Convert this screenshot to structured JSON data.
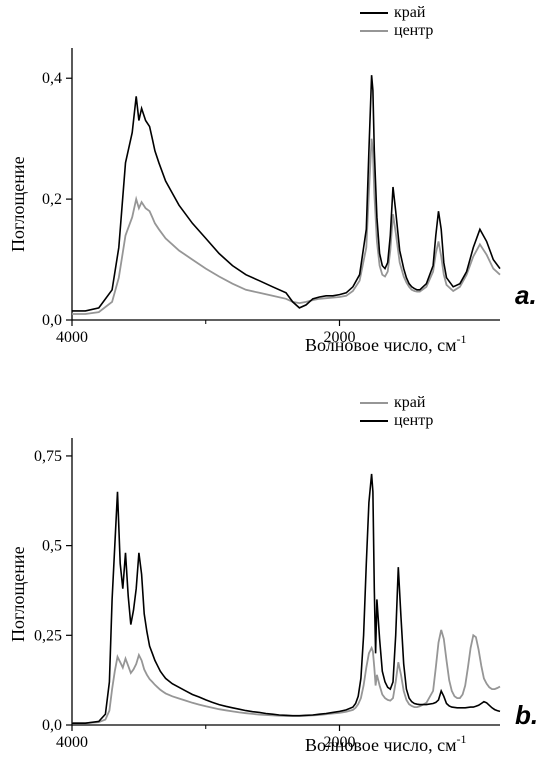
{
  "colors": {
    "bg": "#ffffff",
    "axis": "#000000",
    "series_black": "#000000",
    "series_gray": "#969696"
  },
  "fonts": {
    "axis_label_pt": 18,
    "tick_pt": 16,
    "legend_pt": 16,
    "panel_letter_pt": 26
  },
  "panel_a": {
    "type": "line",
    "letter": "a.",
    "ylabel": "Поглощение",
    "xlabel": "Волновое число, см",
    "xlabel_sup": "-1",
    "xlim": [
      4000,
      800
    ],
    "ylim": [
      0.0,
      0.45
    ],
    "xticks": [
      4000,
      2000
    ],
    "yticks": [
      0.0,
      0.2,
      0.4
    ],
    "ytick_labels": [
      "0,0",
      "0,2",
      "0,4"
    ],
    "legend": [
      {
        "label": "край",
        "color": "#000000"
      },
      {
        "label": "центр",
        "color": "#969696"
      }
    ],
    "series_black": {
      "x": [
        4000,
        3900,
        3800,
        3700,
        3650,
        3600,
        3550,
        3520,
        3500,
        3480,
        3450,
        3420,
        3400,
        3380,
        3350,
        3300,
        3250,
        3200,
        3100,
        3000,
        2900,
        2800,
        2700,
        2600,
        2500,
        2400,
        2350,
        2300,
        2250,
        2200,
        2150,
        2100,
        2050,
        2000,
        1950,
        1900,
        1850,
        1800,
        1780,
        1760,
        1750,
        1740,
        1720,
        1700,
        1680,
        1660,
        1640,
        1620,
        1600,
        1580,
        1550,
        1520,
        1500,
        1480,
        1460,
        1440,
        1420,
        1400,
        1350,
        1300,
        1280,
        1260,
        1240,
        1220,
        1200,
        1150,
        1100,
        1050,
        1000,
        950,
        900,
        850,
        800
      ],
      "y": [
        0.015,
        0.015,
        0.02,
        0.05,
        0.12,
        0.26,
        0.31,
        0.37,
        0.33,
        0.35,
        0.33,
        0.32,
        0.3,
        0.28,
        0.26,
        0.23,
        0.21,
        0.19,
        0.16,
        0.135,
        0.11,
        0.09,
        0.075,
        0.065,
        0.055,
        0.045,
        0.03,
        0.02,
        0.025,
        0.035,
        0.038,
        0.04,
        0.04,
        0.042,
        0.045,
        0.055,
        0.075,
        0.15,
        0.28,
        0.405,
        0.38,
        0.28,
        0.17,
        0.11,
        0.09,
        0.085,
        0.095,
        0.14,
        0.22,
        0.18,
        0.115,
        0.085,
        0.07,
        0.06,
        0.055,
        0.052,
        0.05,
        0.05,
        0.06,
        0.09,
        0.14,
        0.18,
        0.15,
        0.095,
        0.07,
        0.055,
        0.06,
        0.08,
        0.12,
        0.15,
        0.13,
        0.1,
        0.085
      ]
    },
    "series_gray": {
      "x": [
        4000,
        3900,
        3800,
        3700,
        3650,
        3600,
        3550,
        3520,
        3500,
        3480,
        3450,
        3420,
        3400,
        3380,
        3350,
        3300,
        3250,
        3200,
        3100,
        3000,
        2900,
        2800,
        2700,
        2600,
        2500,
        2400,
        2350,
        2300,
        2250,
        2200,
        2150,
        2100,
        2050,
        2000,
        1950,
        1900,
        1850,
        1800,
        1780,
        1760,
        1750,
        1740,
        1720,
        1700,
        1680,
        1660,
        1640,
        1620,
        1600,
        1580,
        1550,
        1520,
        1500,
        1480,
        1460,
        1440,
        1420,
        1400,
        1350,
        1300,
        1280,
        1260,
        1240,
        1220,
        1200,
        1150,
        1100,
        1050,
        1000,
        950,
        900,
        850,
        800
      ],
      "y": [
        0.01,
        0.01,
        0.013,
        0.03,
        0.07,
        0.14,
        0.17,
        0.2,
        0.185,
        0.195,
        0.185,
        0.18,
        0.17,
        0.16,
        0.15,
        0.135,
        0.125,
        0.115,
        0.1,
        0.085,
        0.072,
        0.06,
        0.05,
        0.045,
        0.04,
        0.035,
        0.03,
        0.028,
        0.03,
        0.033,
        0.035,
        0.036,
        0.037,
        0.038,
        0.04,
        0.048,
        0.065,
        0.12,
        0.21,
        0.3,
        0.28,
        0.21,
        0.13,
        0.09,
        0.075,
        0.072,
        0.08,
        0.115,
        0.175,
        0.145,
        0.095,
        0.072,
        0.062,
        0.055,
        0.05,
        0.048,
        0.047,
        0.047,
        0.055,
        0.08,
        0.11,
        0.13,
        0.105,
        0.075,
        0.058,
        0.048,
        0.055,
        0.075,
        0.105,
        0.125,
        0.108,
        0.085,
        0.075
      ]
    }
  },
  "panel_b": {
    "type": "line",
    "letter": "b.",
    "ylabel": "Поглощение",
    "xlabel": "Волновое число, см",
    "xlabel_sup": "-1",
    "xlim": [
      4000,
      800
    ],
    "ylim": [
      0.0,
      0.8
    ],
    "xticks": [
      4000,
      2000
    ],
    "yticks": [
      0.0,
      0.25,
      0.5,
      0.75
    ],
    "ytick_labels": [
      "0,0",
      "0,25",
      "0,5",
      "0,75"
    ],
    "legend": [
      {
        "label": "край",
        "color": "#969696"
      },
      {
        "label": "центр",
        "color": "#000000"
      }
    ],
    "series_black": {
      "x": [
        4000,
        3900,
        3800,
        3750,
        3720,
        3700,
        3680,
        3660,
        3640,
        3620,
        3600,
        3580,
        3560,
        3540,
        3520,
        3500,
        3480,
        3460,
        3440,
        3420,
        3400,
        3380,
        3360,
        3340,
        3320,
        3300,
        3250,
        3200,
        3150,
        3100,
        3050,
        3000,
        2950,
        2900,
        2850,
        2800,
        2750,
        2700,
        2650,
        2600,
        2550,
        2500,
        2450,
        2400,
        2350,
        2300,
        2250,
        2200,
        2150,
        2100,
        2050,
        2000,
        1950,
        1900,
        1880,
        1860,
        1840,
        1820,
        1800,
        1780,
        1760,
        1750,
        1740,
        1730,
        1720,
        1700,
        1680,
        1660,
        1640,
        1620,
        1600,
        1580,
        1560,
        1540,
        1520,
        1500,
        1480,
        1460,
        1440,
        1420,
        1400,
        1350,
        1300,
        1280,
        1260,
        1240,
        1220,
        1200,
        1180,
        1160,
        1140,
        1120,
        1100,
        1080,
        1060,
        1040,
        1020,
        1000,
        980,
        960,
        940,
        920,
        900,
        880,
        860,
        840,
        820,
        800
      ],
      "y": [
        0.005,
        0.005,
        0.01,
        0.03,
        0.12,
        0.35,
        0.5,
        0.65,
        0.45,
        0.38,
        0.48,
        0.36,
        0.28,
        0.32,
        0.38,
        0.48,
        0.42,
        0.31,
        0.26,
        0.22,
        0.2,
        0.18,
        0.165,
        0.15,
        0.14,
        0.13,
        0.115,
        0.105,
        0.095,
        0.085,
        0.078,
        0.07,
        0.063,
        0.057,
        0.052,
        0.048,
        0.044,
        0.04,
        0.037,
        0.035,
        0.032,
        0.03,
        0.028,
        0.027,
        0.026,
        0.026,
        0.027,
        0.028,
        0.03,
        0.032,
        0.035,
        0.038,
        0.042,
        0.05,
        0.06,
        0.08,
        0.13,
        0.25,
        0.45,
        0.62,
        0.7,
        0.65,
        0.38,
        0.2,
        0.35,
        0.24,
        0.15,
        0.12,
        0.105,
        0.1,
        0.12,
        0.25,
        0.44,
        0.3,
        0.17,
        0.1,
        0.075,
        0.065,
        0.06,
        0.058,
        0.057,
        0.057,
        0.06,
        0.063,
        0.07,
        0.095,
        0.08,
        0.06,
        0.053,
        0.05,
        0.049,
        0.048,
        0.048,
        0.048,
        0.048,
        0.049,
        0.05,
        0.05,
        0.052,
        0.055,
        0.06,
        0.065,
        0.062,
        0.055,
        0.048,
        0.043,
        0.04,
        0.038
      ]
    },
    "series_gray": {
      "x": [
        4000,
        3900,
        3800,
        3750,
        3720,
        3700,
        3680,
        3660,
        3640,
        3620,
        3600,
        3580,
        3560,
        3540,
        3520,
        3500,
        3480,
        3460,
        3440,
        3420,
        3400,
        3380,
        3360,
        3340,
        3320,
        3300,
        3250,
        3200,
        3150,
        3100,
        3050,
        3000,
        2950,
        2900,
        2850,
        2800,
        2750,
        2700,
        2650,
        2600,
        2550,
        2500,
        2450,
        2400,
        2350,
        2300,
        2250,
        2200,
        2150,
        2100,
        2050,
        2000,
        1950,
        1900,
        1880,
        1860,
        1840,
        1820,
        1800,
        1780,
        1760,
        1750,
        1740,
        1730,
        1720,
        1700,
        1680,
        1660,
        1640,
        1620,
        1600,
        1580,
        1560,
        1540,
        1520,
        1500,
        1480,
        1460,
        1440,
        1420,
        1400,
        1350,
        1300,
        1280,
        1260,
        1240,
        1220,
        1200,
        1180,
        1160,
        1140,
        1120,
        1100,
        1080,
        1060,
        1040,
        1020,
        1000,
        980,
        960,
        940,
        920,
        900,
        880,
        860,
        840,
        820,
        800
      ],
      "y": [
        0.005,
        0.005,
        0.008,
        0.015,
        0.04,
        0.1,
        0.15,
        0.19,
        0.175,
        0.16,
        0.185,
        0.165,
        0.145,
        0.155,
        0.17,
        0.195,
        0.18,
        0.155,
        0.14,
        0.128,
        0.12,
        0.112,
        0.105,
        0.098,
        0.093,
        0.088,
        0.08,
        0.074,
        0.068,
        0.062,
        0.057,
        0.052,
        0.048,
        0.044,
        0.041,
        0.038,
        0.035,
        0.033,
        0.031,
        0.029,
        0.028,
        0.027,
        0.026,
        0.025,
        0.025,
        0.025,
        0.026,
        0.027,
        0.028,
        0.03,
        0.032,
        0.034,
        0.037,
        0.042,
        0.048,
        0.058,
        0.075,
        0.11,
        0.16,
        0.2,
        0.215,
        0.205,
        0.16,
        0.11,
        0.14,
        0.11,
        0.085,
        0.075,
        0.07,
        0.068,
        0.075,
        0.12,
        0.175,
        0.14,
        0.095,
        0.07,
        0.058,
        0.053,
        0.05,
        0.05,
        0.052,
        0.062,
        0.095,
        0.16,
        0.23,
        0.265,
        0.24,
        0.18,
        0.125,
        0.095,
        0.08,
        0.075,
        0.075,
        0.085,
        0.11,
        0.16,
        0.215,
        0.25,
        0.245,
        0.21,
        0.165,
        0.13,
        0.115,
        0.105,
        0.1,
        0.1,
        0.103,
        0.107
      ]
    }
  }
}
